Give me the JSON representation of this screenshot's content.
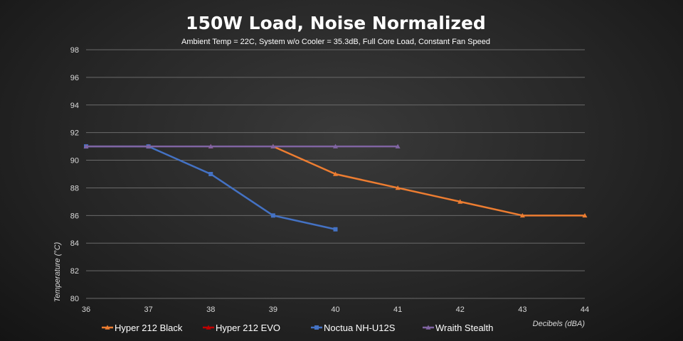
{
  "chart_data": {
    "type": "line",
    "title": "150W Load, Noise Normalized",
    "subtitle": "Ambient Temp = 22C, System w/o Cooler = 35.3dB, Full Core Load, Constant Fan Speed",
    "xlabel": "Decibels (dBA)",
    "ylabel": "Temperature (°C)",
    "xlim": [
      36,
      44
    ],
    "ylim": [
      80,
      98
    ],
    "x_ticks": [
      36,
      37,
      38,
      39,
      40,
      41,
      42,
      43,
      44
    ],
    "y_ticks": [
      80,
      82,
      84,
      86,
      88,
      90,
      92,
      94,
      96,
      98
    ],
    "grid": true,
    "legend_position": "bottom",
    "series": [
      {
        "name": "Hyper 212 Black",
        "color": "#ed7d31",
        "marker": "triangle",
        "x": [
          39,
          40,
          41,
          42,
          43,
          44
        ],
        "y": [
          91,
          89,
          88,
          87,
          86,
          86
        ]
      },
      {
        "name": "Hyper 212 EVO",
        "color": "#c00000",
        "marker": "triangle",
        "x": [
          38
        ],
        "y": [
          91
        ]
      },
      {
        "name": "Noctua NH-U12S",
        "color": "#4472c4",
        "marker": "square",
        "x": [
          36,
          37,
          38,
          39,
          40
        ],
        "y": [
          91,
          91,
          89,
          86,
          85
        ]
      },
      {
        "name": "Wraith Stealth",
        "color": "#8064a2",
        "marker": "triangle",
        "x": [
          36,
          37,
          38,
          39,
          40,
          41
        ],
        "y": [
          91,
          91,
          91,
          91,
          91,
          91
        ]
      }
    ]
  }
}
